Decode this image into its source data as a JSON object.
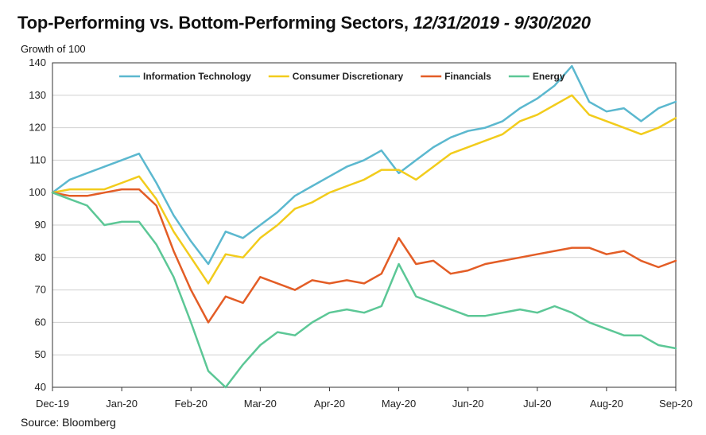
{
  "title": {
    "main": "Top-Performing vs. Bottom-Performing Sectors, ",
    "dates": "12/31/2019 - 9/30/2020"
  },
  "ylabel": "Growth of 100",
  "source": "Source: Bloomberg",
  "chart_data": {
    "type": "line",
    "title": "Top-Performing vs. Bottom-Performing Sectors, 12/31/2019 - 9/30/2020",
    "ylabel": "Growth of 100",
    "xlabel": "",
    "ylim": [
      40,
      140
    ],
    "yticks": [
      40,
      50,
      60,
      70,
      80,
      90,
      100,
      110,
      120,
      130,
      140
    ],
    "x_ticks": [
      "Dec-19",
      "Jan-20",
      "Feb-20",
      "Mar-20",
      "Apr-20",
      "May-20",
      "Jun-20",
      "Jul-20",
      "Aug-20",
      "Sep-20"
    ],
    "grid": "horizontal",
    "legend": "top",
    "x": [
      0,
      0.25,
      0.5,
      0.75,
      1,
      1.25,
      1.5,
      1.75,
      2,
      2.25,
      2.5,
      2.75,
      3,
      3.25,
      3.5,
      3.75,
      4,
      4.25,
      4.5,
      4.75,
      5,
      5.25,
      5.5,
      5.75,
      6,
      6.25,
      6.5,
      6.75,
      7,
      7.25,
      7.5,
      7.75,
      8,
      8.25,
      8.5,
      8.75,
      9
    ],
    "series": [
      {
        "name": "Information Technology",
        "color": "#5bb8cf",
        "values": [
          100,
          104,
          106,
          108,
          110,
          112,
          103,
          93,
          85,
          78,
          88,
          86,
          90,
          94,
          99,
          102,
          105,
          108,
          110,
          113,
          106,
          110,
          114,
          117,
          119,
          120,
          122,
          126,
          129,
          133,
          139,
          128,
          125,
          126,
          122,
          126,
          128
        ]
      },
      {
        "name": "Consumer Discretionary",
        "color": "#f2cc1c",
        "values": [
          100,
          101,
          101,
          101,
          103,
          105,
          98,
          88,
          80,
          72,
          81,
          80,
          86,
          90,
          95,
          97,
          100,
          102,
          104,
          107,
          107,
          104,
          108,
          112,
          114,
          116,
          118,
          122,
          124,
          127,
          130,
          124,
          122,
          120,
          118,
          120,
          123
        ]
      },
      {
        "name": "Financials",
        "color": "#e35d26",
        "values": [
          100,
          99,
          99,
          100,
          101,
          101,
          96,
          82,
          70,
          60,
          68,
          66,
          74,
          72,
          70,
          73,
          72,
          73,
          72,
          75,
          86,
          78,
          79,
          75,
          76,
          78,
          79,
          80,
          81,
          82,
          83,
          83,
          81,
          82,
          79,
          77,
          79
        ]
      },
      {
        "name": "Energy",
        "color": "#5cc796",
        "values": [
          100,
          98,
          96,
          90,
          91,
          91,
          84,
          74,
          60,
          45,
          40,
          47,
          53,
          57,
          56,
          60,
          63,
          64,
          63,
          65,
          78,
          68,
          66,
          64,
          62,
          62,
          63,
          64,
          63,
          65,
          63,
          60,
          58,
          56,
          56,
          53,
          52
        ]
      }
    ]
  }
}
